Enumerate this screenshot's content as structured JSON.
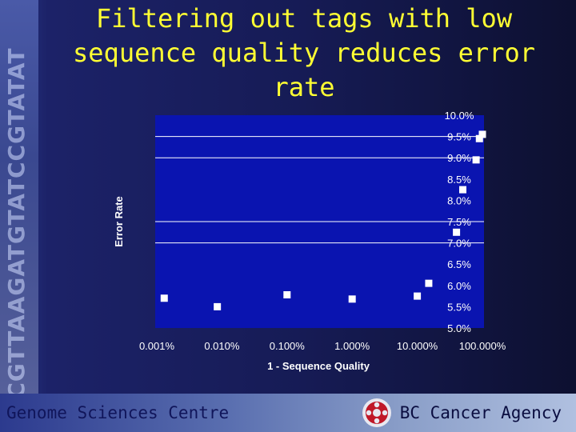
{
  "slide": {
    "title": "Filtering out tags with low sequence quality reduces error rate",
    "dna_text": "ATTCGTTAAGATGTATCCGTATAT",
    "footer_left": "Genome Sciences Centre",
    "footer_right": "BC Cancer Agency",
    "logo_icon": "bc-cancer-agency-logo"
  },
  "colors": {
    "title": "#ffff33",
    "plot_background": "#0a14b0",
    "marker": "#ffffff"
  },
  "chart_data": {
    "type": "scatter",
    "xlabel": "1 - Sequence Quality",
    "ylabel": "Error Rate",
    "x_scale": "log",
    "xlim": [
      0.001,
      100
    ],
    "ylim": [
      5.0,
      10.0
    ],
    "x_ticks": [
      0.001,
      0.01,
      0.1,
      1,
      10,
      100
    ],
    "x_tick_labels": [
      "0.001%",
      "0.010%",
      "0.100%",
      "1.000%",
      "10.000%",
      "100.000%"
    ],
    "y_ticks": [
      5.0,
      5.5,
      6.0,
      6.5,
      7.0,
      7.5,
      8.0,
      8.5,
      9.0,
      9.5,
      10.0
    ],
    "y_tick_labels": [
      "5.0%",
      "5.5%",
      "6.0%",
      "6.5%",
      "7.0%",
      "7.5%",
      "8.0%",
      "8.5%",
      "9.0%",
      "9.5%",
      "10.0%"
    ],
    "y_axis_position": "right",
    "gridlines_y": [
      7.0,
      7.5,
      9.0,
      9.5
    ],
    "legend": "none",
    "points": [
      {
        "x": 0.0013,
        "y": 5.7
      },
      {
        "x": 0.0085,
        "y": 5.5
      },
      {
        "x": 0.1,
        "y": 5.78
      },
      {
        "x": 1.0,
        "y": 5.68
      },
      {
        "x": 10.0,
        "y": 5.75
      },
      {
        "x": 15.0,
        "y": 6.05
      },
      {
        "x": 40.0,
        "y": 7.25
      },
      {
        "x": 50.0,
        "y": 8.25
      },
      {
        "x": 80.0,
        "y": 8.95
      },
      {
        "x": 90.0,
        "y": 9.45
      },
      {
        "x": 100.0,
        "y": 9.55
      }
    ]
  }
}
